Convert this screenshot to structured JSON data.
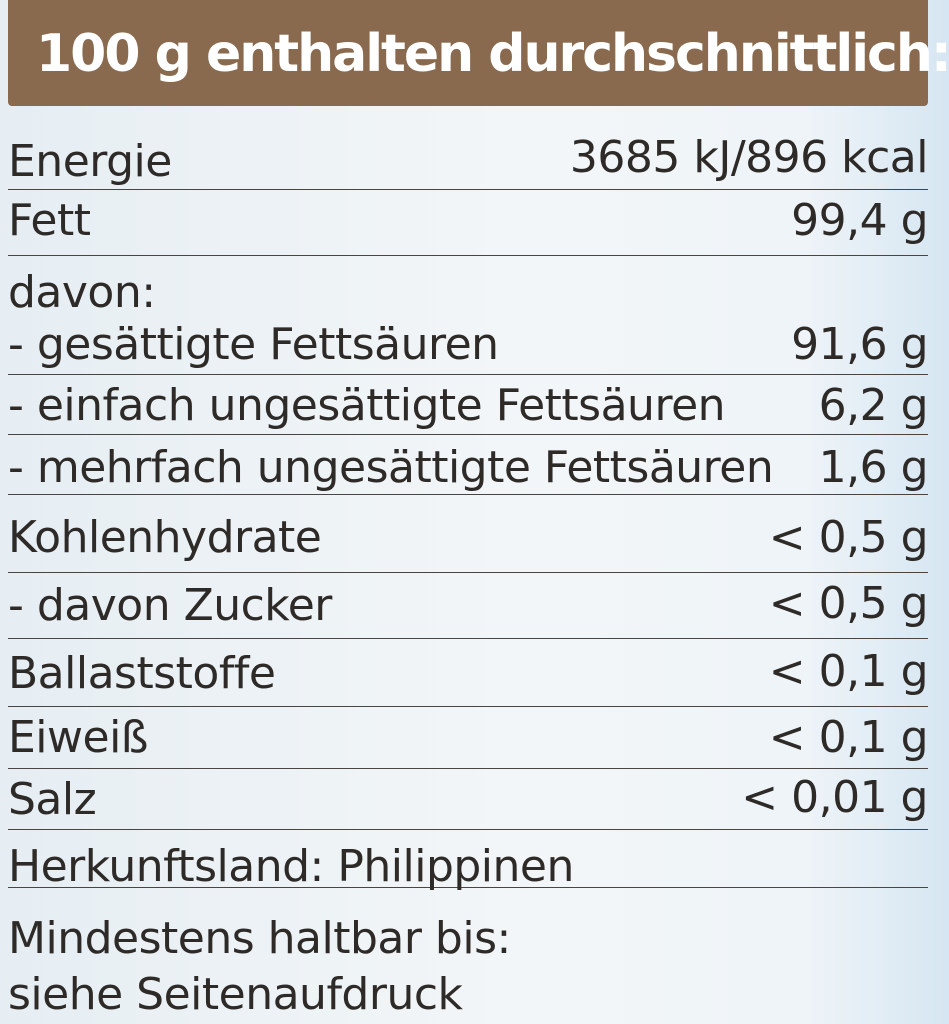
{
  "header": {
    "title": "100 g enthalten durchschnittlich:"
  },
  "rows": [
    {
      "label": "Energie",
      "value": "3685 kJ/896 kcal"
    },
    {
      "label": "Fett",
      "value": "99,4 g"
    },
    {
      "label": "davon:",
      "value": ""
    },
    {
      "label": "- gesättigte Fettsäuren",
      "value": "91,6 g"
    },
    {
      "label": "- einfach ungesättigte Fettsäuren",
      "value": "6,2 g"
    },
    {
      "label": "- mehrfach ungesättigte Fettsäuren",
      "value": "1,6 g"
    },
    {
      "label": "Kohlenhydrate",
      "value": "< 0,5 g"
    },
    {
      "label": "- davon Zucker",
      "value": "< 0,5 g"
    },
    {
      "label": "Ballaststoffe",
      "value": "< 0,1 g"
    },
    {
      "label": "Eiweiß",
      "value": "< 0,1 g"
    },
    {
      "label": "Salz",
      "value": "< 0,01 g"
    }
  ],
  "origin": {
    "text": "Herkunftsland: Philippinen"
  },
  "best_before": {
    "line1": "Mindestens haltbar bis:",
    "line2": "siehe Seitenaufdruck"
  }
}
